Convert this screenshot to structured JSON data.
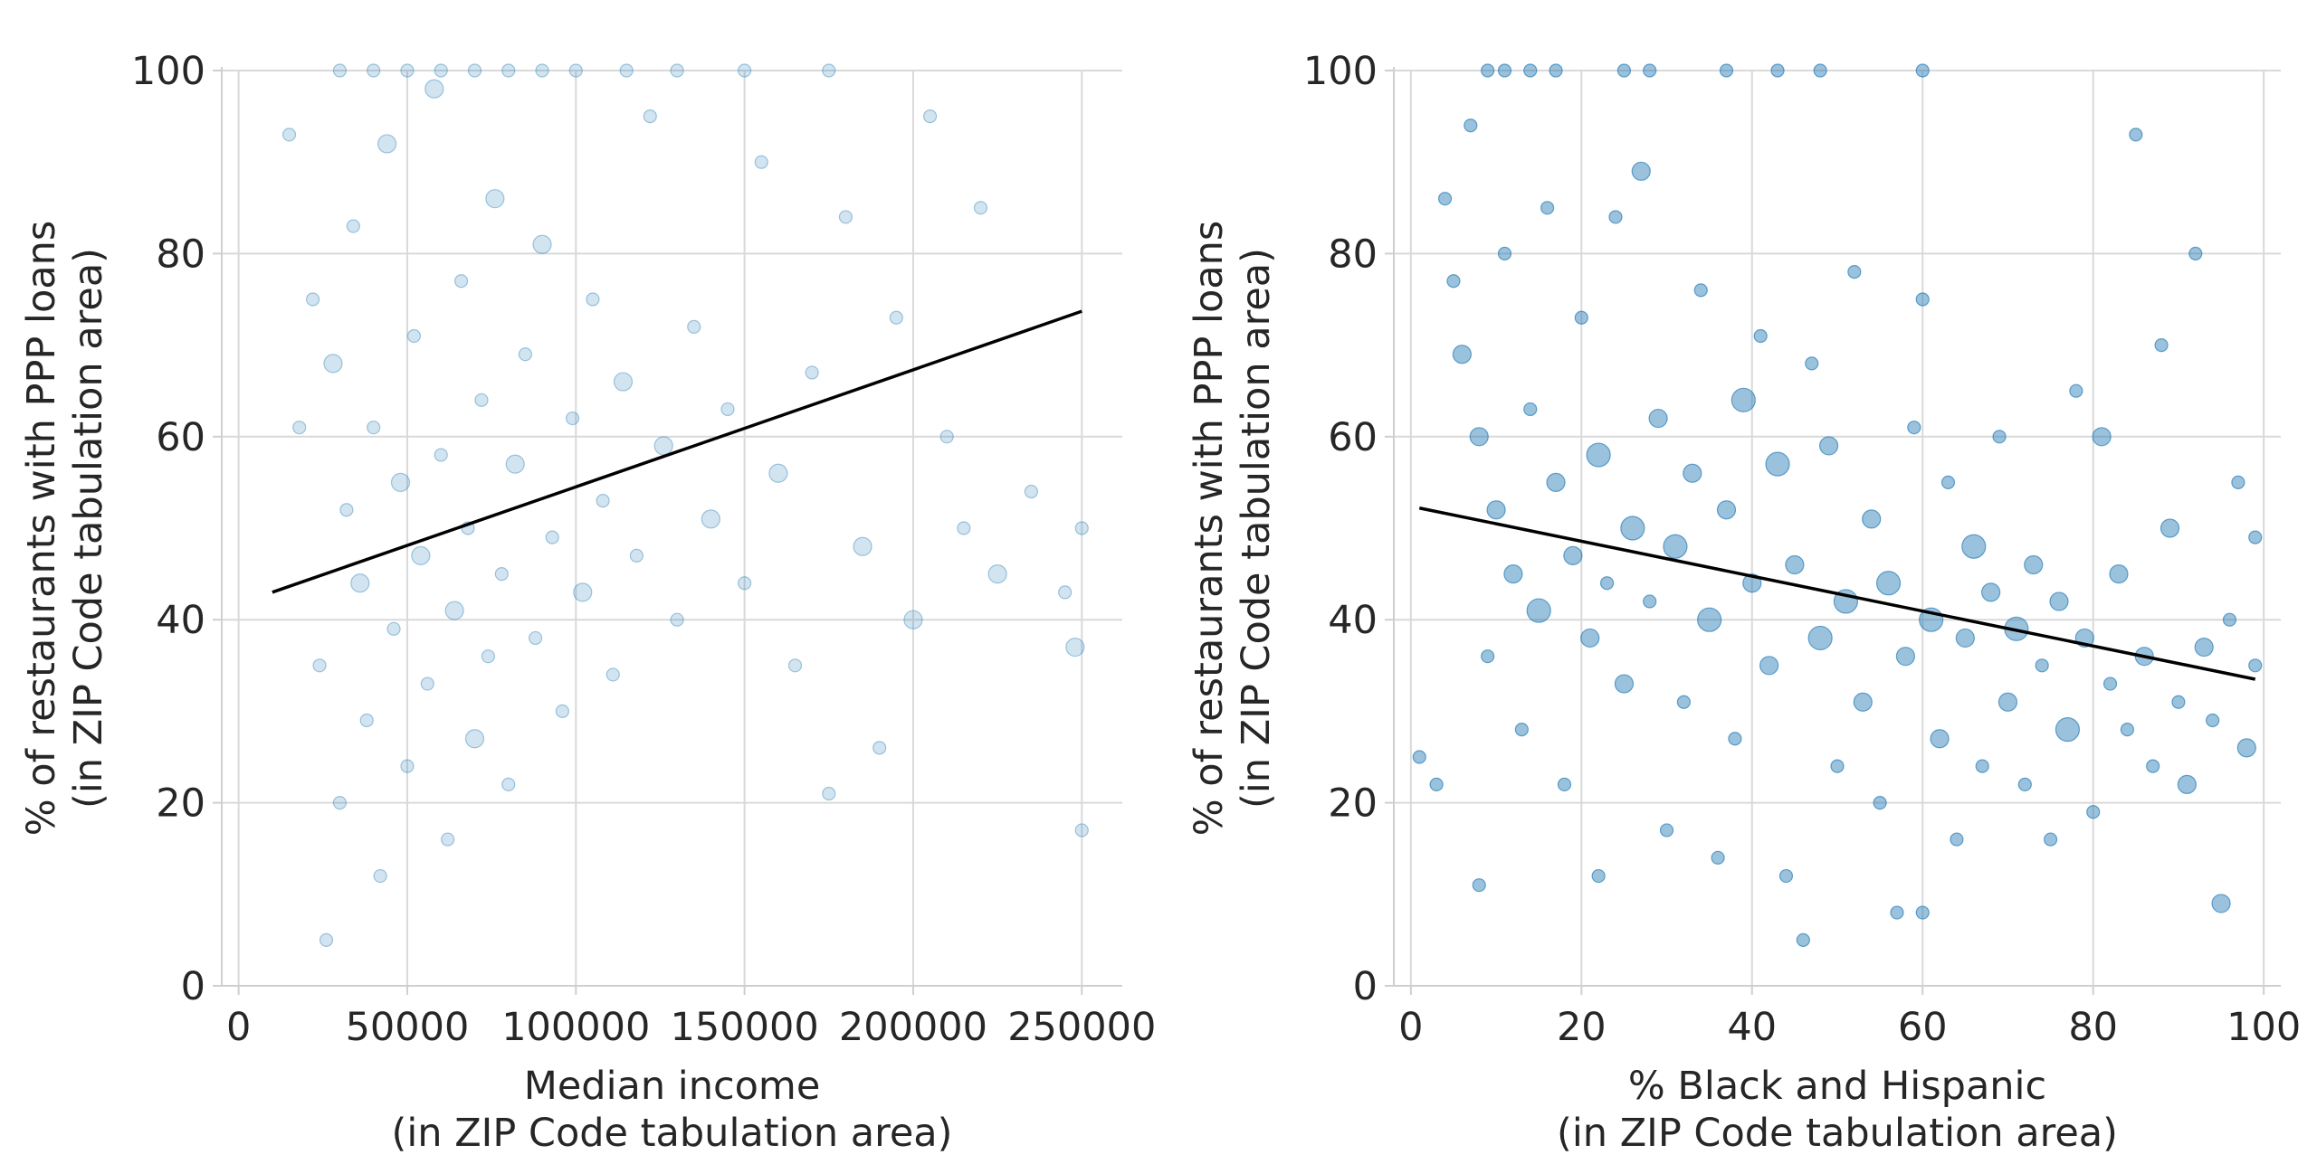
{
  "chart_data": [
    {
      "type": "scatter",
      "xlabel": [
        "Median income",
        "(in ZIP Code tabulation area)"
      ],
      "ylabel": [
        "% of restaurants with PPP loans",
        "(in ZIP Code tabulation area)"
      ],
      "xlim": [
        -5000,
        262000
      ],
      "ylim": [
        0,
        100
      ],
      "xticks": [
        0,
        50000,
        100000,
        150000,
        200000,
        250000
      ],
      "xtick_labels": [
        "0",
        "50000",
        "100000",
        "150000",
        "200000",
        "250000"
      ],
      "yticks": [
        0,
        20,
        40,
        60,
        80,
        100
      ],
      "ytick_labels": [
        "0",
        "20",
        "40",
        "60",
        "80",
        "100"
      ],
      "grid": true,
      "point_color": "#1f77b4",
      "point_alpha": 0.2,
      "trend_line": {
        "x": [
          10000,
          250000
        ],
        "y": [
          43,
          73.7
        ]
      },
      "points": [
        {
          "x": 15000,
          "y": 93,
          "s": 1
        },
        {
          "x": 18000,
          "y": 61,
          "s": 1
        },
        {
          "x": 22000,
          "y": 75,
          "s": 1
        },
        {
          "x": 24000,
          "y": 35,
          "s": 1
        },
        {
          "x": 26000,
          "y": 5,
          "s": 1
        },
        {
          "x": 28000,
          "y": 68,
          "s": 2
        },
        {
          "x": 30000,
          "y": 20,
          "s": 1
        },
        {
          "x": 32000,
          "y": 52,
          "s": 1
        },
        {
          "x": 34000,
          "y": 83,
          "s": 1
        },
        {
          "x": 36000,
          "y": 44,
          "s": 2
        },
        {
          "x": 38000,
          "y": 29,
          "s": 1
        },
        {
          "x": 40000,
          "y": 61,
          "s": 1
        },
        {
          "x": 42000,
          "y": 12,
          "s": 1
        },
        {
          "x": 44000,
          "y": 92,
          "s": 2
        },
        {
          "x": 46000,
          "y": 39,
          "s": 1
        },
        {
          "x": 48000,
          "y": 55,
          "s": 2
        },
        {
          "x": 50000,
          "y": 24,
          "s": 1
        },
        {
          "x": 52000,
          "y": 71,
          "s": 1
        },
        {
          "x": 54000,
          "y": 47,
          "s": 2
        },
        {
          "x": 56000,
          "y": 33,
          "s": 1
        },
        {
          "x": 58000,
          "y": 98,
          "s": 2
        },
        {
          "x": 60000,
          "y": 58,
          "s": 1
        },
        {
          "x": 62000,
          "y": 16,
          "s": 1
        },
        {
          "x": 64000,
          "y": 41,
          "s": 2
        },
        {
          "x": 66000,
          "y": 77,
          "s": 1
        },
        {
          "x": 68000,
          "y": 50,
          "s": 1
        },
        {
          "x": 70000,
          "y": 27,
          "s": 2
        },
        {
          "x": 72000,
          "y": 64,
          "s": 1
        },
        {
          "x": 74000,
          "y": 36,
          "s": 1
        },
        {
          "x": 76000,
          "y": 86,
          "s": 2
        },
        {
          "x": 78000,
          "y": 45,
          "s": 1
        },
        {
          "x": 80000,
          "y": 22,
          "s": 1
        },
        {
          "x": 82000,
          "y": 57,
          "s": 2
        },
        {
          "x": 85000,
          "y": 69,
          "s": 1
        },
        {
          "x": 88000,
          "y": 38,
          "s": 1
        },
        {
          "x": 90000,
          "y": 81,
          "s": 2
        },
        {
          "x": 93000,
          "y": 49,
          "s": 1
        },
        {
          "x": 96000,
          "y": 30,
          "s": 1
        },
        {
          "x": 99000,
          "y": 62,
          "s": 1
        },
        {
          "x": 102000,
          "y": 43,
          "s": 2
        },
        {
          "x": 105000,
          "y": 75,
          "s": 1
        },
        {
          "x": 108000,
          "y": 53,
          "s": 1
        },
        {
          "x": 111000,
          "y": 34,
          "s": 1
        },
        {
          "x": 114000,
          "y": 66,
          "s": 2
        },
        {
          "x": 118000,
          "y": 47,
          "s": 1
        },
        {
          "x": 122000,
          "y": 95,
          "s": 1
        },
        {
          "x": 126000,
          "y": 59,
          "s": 2
        },
        {
          "x": 130000,
          "y": 40,
          "s": 1
        },
        {
          "x": 135000,
          "y": 72,
          "s": 1
        },
        {
          "x": 140000,
          "y": 51,
          "s": 2
        },
        {
          "x": 145000,
          "y": 63,
          "s": 1
        },
        {
          "x": 150000,
          "y": 44,
          "s": 1
        },
        {
          "x": 155000,
          "y": 90,
          "s": 1
        },
        {
          "x": 160000,
          "y": 56,
          "s": 2
        },
        {
          "x": 165000,
          "y": 35,
          "s": 1
        },
        {
          "x": 170000,
          "y": 67,
          "s": 1
        },
        {
          "x": 175000,
          "y": 21,
          "s": 1
        },
        {
          "x": 180000,
          "y": 84,
          "s": 1
        },
        {
          "x": 185000,
          "y": 48,
          "s": 2
        },
        {
          "x": 190000,
          "y": 26,
          "s": 1
        },
        {
          "x": 195000,
          "y": 73,
          "s": 1
        },
        {
          "x": 200000,
          "y": 40,
          "s": 2
        },
        {
          "x": 205000,
          "y": 95,
          "s": 1
        },
        {
          "x": 210000,
          "y": 60,
          "s": 1
        },
        {
          "x": 215000,
          "y": 50,
          "s": 1
        },
        {
          "x": 220000,
          "y": 85,
          "s": 1
        },
        {
          "x": 225000,
          "y": 45,
          "s": 2
        },
        {
          "x": 235000,
          "y": 54,
          "s": 1
        },
        {
          "x": 245000,
          "y": 43,
          "s": 1
        },
        {
          "x": 248000,
          "y": 37,
          "s": 2
        },
        {
          "x": 250000,
          "y": 50,
          "s": 1
        },
        {
          "x": 250000,
          "y": 17,
          "s": 1
        },
        {
          "x": 30000,
          "y": 100,
          "s": 1
        },
        {
          "x": 40000,
          "y": 100,
          "s": 1
        },
        {
          "x": 50000,
          "y": 100,
          "s": 1
        },
        {
          "x": 60000,
          "y": 100,
          "s": 1
        },
        {
          "x": 70000,
          "y": 100,
          "s": 1
        },
        {
          "x": 80000,
          "y": 100,
          "s": 1
        },
        {
          "x": 90000,
          "y": 100,
          "s": 1
        },
        {
          "x": 100000,
          "y": 100,
          "s": 1
        },
        {
          "x": 115000,
          "y": 100,
          "s": 1
        },
        {
          "x": 130000,
          "y": 100,
          "s": 1
        },
        {
          "x": 150000,
          "y": 100,
          "s": 1
        },
        {
          "x": 175000,
          "y": 100,
          "s": 1
        }
      ]
    },
    {
      "type": "scatter",
      "xlabel": [
        "% Black and Hispanic",
        "(in ZIP Code tabulation area)"
      ],
      "ylabel": [
        "% of restaurants with PPP loans",
        "(in ZIP Code tabulation area)"
      ],
      "xlim": [
        -2,
        102
      ],
      "ylim": [
        0,
        100
      ],
      "xticks": [
        0,
        20,
        40,
        60,
        80,
        100
      ],
      "xtick_labels": [
        "0",
        "20",
        "40",
        "60",
        "80",
        "100"
      ],
      "yticks": [
        0,
        20,
        40,
        60,
        80,
        100
      ],
      "ytick_labels": [
        "0",
        "20",
        "40",
        "60",
        "80",
        "100"
      ],
      "grid": true,
      "point_color": "#1f77b4",
      "point_alpha": 0.45,
      "trend_line": {
        "x": [
          1,
          99
        ],
        "y": [
          52.2,
          33.5
        ]
      },
      "points": [
        {
          "x": 1,
          "y": 25,
          "s": 1
        },
        {
          "x": 3,
          "y": 22,
          "s": 1
        },
        {
          "x": 4,
          "y": 86,
          "s": 1
        },
        {
          "x": 5,
          "y": 77,
          "s": 1
        },
        {
          "x": 6,
          "y": 69,
          "s": 2
        },
        {
          "x": 7,
          "y": 94,
          "s": 1
        },
        {
          "x": 8,
          "y": 11,
          "s": 1
        },
        {
          "x": 8,
          "y": 60,
          "s": 2
        },
        {
          "x": 9,
          "y": 36,
          "s": 1
        },
        {
          "x": 9,
          "y": 100,
          "s": 1
        },
        {
          "x": 10,
          "y": 52,
          "s": 2
        },
        {
          "x": 11,
          "y": 80,
          "s": 1
        },
        {
          "x": 12,
          "y": 45,
          "s": 2
        },
        {
          "x": 13,
          "y": 28,
          "s": 1
        },
        {
          "x": 14,
          "y": 63,
          "s": 1
        },
        {
          "x": 15,
          "y": 41,
          "s": 3
        },
        {
          "x": 16,
          "y": 85,
          "s": 1
        },
        {
          "x": 17,
          "y": 55,
          "s": 2
        },
        {
          "x": 18,
          "y": 22,
          "s": 1
        },
        {
          "x": 19,
          "y": 47,
          "s": 2
        },
        {
          "x": 20,
          "y": 73,
          "s": 1
        },
        {
          "x": 21,
          "y": 38,
          "s": 2
        },
        {
          "x": 22,
          "y": 58,
          "s": 3
        },
        {
          "x": 22,
          "y": 12,
          "s": 1
        },
        {
          "x": 23,
          "y": 44,
          "s": 1
        },
        {
          "x": 24,
          "y": 84,
          "s": 1
        },
        {
          "x": 25,
          "y": 33,
          "s": 2
        },
        {
          "x": 26,
          "y": 50,
          "s": 3
        },
        {
          "x": 27,
          "y": 89,
          "s": 2
        },
        {
          "x": 28,
          "y": 42,
          "s": 1
        },
        {
          "x": 29,
          "y": 62,
          "s": 2
        },
        {
          "x": 30,
          "y": 17,
          "s": 1
        },
        {
          "x": 31,
          "y": 48,
          "s": 3
        },
        {
          "x": 32,
          "y": 31,
          "s": 1
        },
        {
          "x": 33,
          "y": 56,
          "s": 2
        },
        {
          "x": 34,
          "y": 76,
          "s": 1
        },
        {
          "x": 35,
          "y": 40,
          "s": 3
        },
        {
          "x": 36,
          "y": 14,
          "s": 1
        },
        {
          "x": 37,
          "y": 52,
          "s": 2
        },
        {
          "x": 38,
          "y": 27,
          "s": 1
        },
        {
          "x": 39,
          "y": 64,
          "s": 3
        },
        {
          "x": 40,
          "y": 44,
          "s": 2
        },
        {
          "x": 41,
          "y": 71,
          "s": 1
        },
        {
          "x": 42,
          "y": 35,
          "s": 2
        },
        {
          "x": 43,
          "y": 57,
          "s": 3
        },
        {
          "x": 44,
          "y": 12,
          "s": 1
        },
        {
          "x": 45,
          "y": 46,
          "s": 2
        },
        {
          "x": 46,
          "y": 5,
          "s": 1
        },
        {
          "x": 47,
          "y": 68,
          "s": 1
        },
        {
          "x": 48,
          "y": 38,
          "s": 3
        },
        {
          "x": 49,
          "y": 59,
          "s": 2
        },
        {
          "x": 50,
          "y": 24,
          "s": 1
        },
        {
          "x": 51,
          "y": 42,
          "s": 3
        },
        {
          "x": 52,
          "y": 78,
          "s": 1
        },
        {
          "x": 53,
          "y": 31,
          "s": 2
        },
        {
          "x": 54,
          "y": 51,
          "s": 2
        },
        {
          "x": 55,
          "y": 20,
          "s": 1
        },
        {
          "x": 56,
          "y": 44,
          "s": 3
        },
        {
          "x": 57,
          "y": 8,
          "s": 1
        },
        {
          "x": 58,
          "y": 36,
          "s": 2
        },
        {
          "x": 59,
          "y": 61,
          "s": 1
        },
        {
          "x": 60,
          "y": 8,
          "s": 1
        },
        {
          "x": 60,
          "y": 75,
          "s": 1
        },
        {
          "x": 61,
          "y": 40,
          "s": 3
        },
        {
          "x": 62,
          "y": 27,
          "s": 2
        },
        {
          "x": 63,
          "y": 55,
          "s": 1
        },
        {
          "x": 64,
          "y": 16,
          "s": 1
        },
        {
          "x": 65,
          "y": 38,
          "s": 2
        },
        {
          "x": 66,
          "y": 48,
          "s": 3
        },
        {
          "x": 67,
          "y": 24,
          "s": 1
        },
        {
          "x": 68,
          "y": 43,
          "s": 2
        },
        {
          "x": 69,
          "y": 60,
          "s": 1
        },
        {
          "x": 70,
          "y": 31,
          "s": 2
        },
        {
          "x": 71,
          "y": 39,
          "s": 3
        },
        {
          "x": 72,
          "y": 22,
          "s": 1
        },
        {
          "x": 73,
          "y": 46,
          "s": 2
        },
        {
          "x": 74,
          "y": 35,
          "s": 1
        },
        {
          "x": 75,
          "y": 16,
          "s": 1
        },
        {
          "x": 76,
          "y": 42,
          "s": 2
        },
        {
          "x": 77,
          "y": 28,
          "s": 3
        },
        {
          "x": 78,
          "y": 65,
          "s": 1
        },
        {
          "x": 79,
          "y": 38,
          "s": 2
        },
        {
          "x": 80,
          "y": 19,
          "s": 1
        },
        {
          "x": 81,
          "y": 60,
          "s": 2
        },
        {
          "x": 82,
          "y": 33,
          "s": 1
        },
        {
          "x": 83,
          "y": 45,
          "s": 2
        },
        {
          "x": 84,
          "y": 28,
          "s": 1
        },
        {
          "x": 85,
          "y": 93,
          "s": 1
        },
        {
          "x": 86,
          "y": 36,
          "s": 2
        },
        {
          "x": 87,
          "y": 24,
          "s": 1
        },
        {
          "x": 88,
          "y": 70,
          "s": 1
        },
        {
          "x": 89,
          "y": 50,
          "s": 2
        },
        {
          "x": 90,
          "y": 31,
          "s": 1
        },
        {
          "x": 91,
          "y": 22,
          "s": 2
        },
        {
          "x": 92,
          "y": 80,
          "s": 1
        },
        {
          "x": 93,
          "y": 37,
          "s": 2
        },
        {
          "x": 94,
          "y": 29,
          "s": 1
        },
        {
          "x": 95,
          "y": 9,
          "s": 2
        },
        {
          "x": 96,
          "y": 40,
          "s": 1
        },
        {
          "x": 97,
          "y": 55,
          "s": 1
        },
        {
          "x": 98,
          "y": 26,
          "s": 2
        },
        {
          "x": 99,
          "y": 35,
          "s": 1
        },
        {
          "x": 99,
          "y": 49,
          "s": 1
        },
        {
          "x": 11,
          "y": 100,
          "s": 1
        },
        {
          "x": 14,
          "y": 100,
          "s": 1
        },
        {
          "x": 17,
          "y": 100,
          "s": 1
        },
        {
          "x": 25,
          "y": 100,
          "s": 1
        },
        {
          "x": 28,
          "y": 100,
          "s": 1
        },
        {
          "x": 37,
          "y": 100,
          "s": 1
        },
        {
          "x": 43,
          "y": 100,
          "s": 1
        },
        {
          "x": 48,
          "y": 100,
          "s": 1
        },
        {
          "x": 60,
          "y": 100,
          "s": 1
        }
      ]
    }
  ]
}
